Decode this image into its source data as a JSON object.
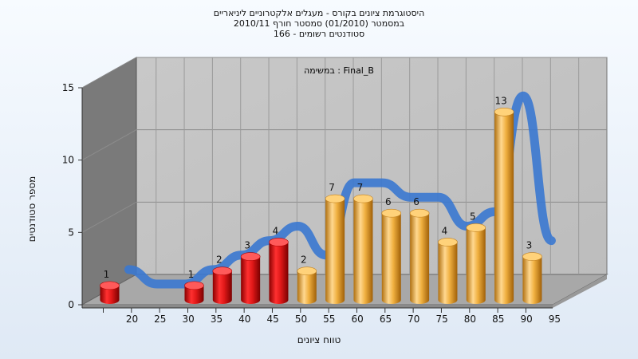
{
  "title": {
    "line1": "היסטוגרמת ציונים בקורס - מעגלים אלקטרוניים ליניאריים",
    "line2": "במסמטר (01/2010) סמסטר חורף 2010/11",
    "line3": "סטודנטים רשומים - 166"
  },
  "inner_label": "במשימה : Final_B",
  "chart_data": {
    "type": "bar",
    "title": "היסטוגרמת ציונים בקורס - מעגלים אלקטרוניים ליניאריים",
    "xlabel": "טווח ציונים",
    "ylabel": "מספר סטודנטים",
    "ylim": [
      0,
      15
    ],
    "yticks": [
      0,
      5,
      10,
      15
    ],
    "categories": [
      "20",
      "25",
      "30",
      "35",
      "40",
      "45",
      "50",
      "55",
      "60",
      "65",
      "70",
      "75",
      "80",
      "85",
      "90",
      "95"
    ],
    "values": [
      1,
      0,
      0,
      1,
      2,
      3,
      4,
      2,
      7,
      7,
      6,
      6,
      4,
      5,
      13,
      3
    ],
    "bar_labels": [
      "1",
      "",
      "",
      "1",
      "2",
      "3",
      "4",
      "2",
      "7",
      "7",
      "6",
      "6",
      "4",
      "5",
      "13",
      "3"
    ],
    "red_color": "#e01818",
    "orange_color": "#f0b040",
    "red_count": 7,
    "curve_color": "#3a78d0",
    "grid": true
  }
}
